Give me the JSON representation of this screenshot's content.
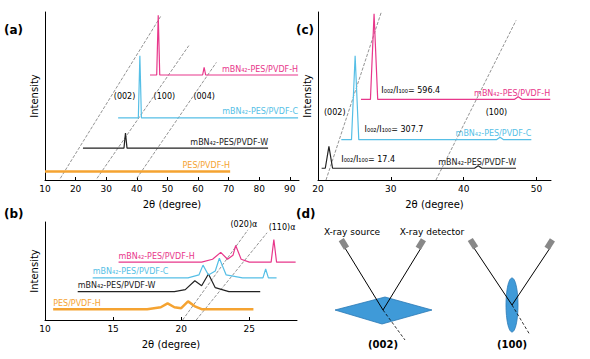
{
  "chart_data": [
    {
      "type": "line",
      "title": "(a)",
      "xlabel": "2θ (degree)",
      "ylabel": "Intensity",
      "xlim": [
        10,
        93
      ],
      "xticks": [
        10,
        20,
        30,
        40,
        50,
        60,
        70,
        80,
        90
      ],
      "ylim": [
        0,
        100
      ],
      "yticks": [],
      "tick_labels": "x",
      "grid": false,
      "series": [
        {
          "name": "PES/PVDF-H",
          "color": "#f5a331",
          "x": [
            10,
            70.5
          ],
          "values": [
            5,
            5
          ]
        },
        {
          "name": "mBN₄₂-PES/PVDF-W",
          "color": "#222222",
          "x": [
            22.4,
            35.8,
            36.3,
            36.8,
            82.9
          ],
          "values": [
            19,
            19,
            28,
            19,
            19
          ]
        },
        {
          "name": "mBN₄₂-PES/PVDF-C",
          "color": "#56bfe6",
          "x": [
            33.9,
            40.5,
            41,
            41.5,
            92.7
          ],
          "values": [
            37,
            37,
            74,
            37,
            37
          ]
        },
        {
          "name": "mBN₄₂-PES/PVDF-H",
          "color": "#e8378b",
          "x": [
            44.3,
            46.5,
            47,
            47.5,
            61.5,
            62,
            62.5,
            92.7
          ],
          "values": [
            62.5,
            62.5,
            98,
            62.5,
            62.5,
            67,
            62.5,
            62.5
          ]
        }
      ],
      "guides": [
        {
          "x": [
            15,
            48
          ],
          "values": [
            1,
            98
          ]
        },
        {
          "x": [
            27,
            57
          ],
          "values": [
            1,
            80
          ]
        },
        {
          "x": [
            40,
            66
          ],
          "values": [
            1,
            70
          ]
        }
      ],
      "annotations": [
        {
          "text": "(002)",
          "x": 36,
          "y": 50
        },
        {
          "text": "(100)",
          "x": 49,
          "y": 50
        },
        {
          "text": "(004)",
          "x": 62,
          "y": 50
        }
      ]
    },
    {
      "type": "line",
      "title": "(b)",
      "xlabel": "2θ (degree)",
      "ylabel": "Intensity",
      "xlim": [
        10,
        28.5
      ],
      "xticks": [
        10,
        15,
        20,
        25
      ],
      "ylim": [
        0,
        100
      ],
      "yticks": [],
      "tick_labels": "x",
      "grid": false,
      "series": [
        {
          "name": "PES/PVDF-H",
          "color": "#f5a331",
          "x": [
            10.6,
            17.5,
            18.5,
            19.0,
            19.5,
            20.0,
            20.5,
            21.0,
            21.5,
            22.0,
            23.0,
            25.3
          ],
          "values": [
            11,
            11,
            13,
            17,
            13,
            12,
            19,
            14,
            11,
            11,
            11,
            11
          ]
        },
        {
          "name": "mBN₄₂-PES/PVDF-W",
          "color": "#222222",
          "x": [
            12.4,
            19.5,
            20.3,
            21.0,
            21.5,
            22.0,
            22.5,
            23.5,
            25.8
          ],
          "values": [
            29,
            29,
            31,
            40,
            35,
            47,
            33,
            29,
            29
          ]
        },
        {
          "name": "mBN₄₂-PES/PVDF-C",
          "color": "#56bfe6",
          "x": [
            13.5,
            20.5,
            21.3,
            21.6,
            22.0,
            22.5,
            22.8,
            23.3,
            24.5,
            26.0,
            26.2,
            26.4,
            27.0
          ],
          "values": [
            43,
            43,
            46,
            56,
            46,
            50,
            63,
            46,
            43,
            43,
            52,
            43,
            43
          ]
        },
        {
          "name": "mBN₄₂-PES/PVDF-H",
          "color": "#e8378b",
          "x": [
            15.4,
            21.5,
            22.3,
            22.9,
            23.4,
            23.8,
            24.0,
            24.4,
            25.0,
            26.6,
            26.8,
            27.0,
            28.4
          ],
          "values": [
            59,
            59,
            62,
            69,
            62,
            66,
            76,
            62,
            59,
            59,
            82,
            59,
            59
          ]
        }
      ],
      "guides": [
        {
          "x": [
            20.1,
            24.9
          ],
          "values": [
            0,
            92
          ]
        },
        {
          "x": [
            21.1,
            26.3
          ],
          "values": [
            0,
            89
          ]
        }
      ],
      "annotations": [
        {
          "text": "(020)α",
          "x": 24.6,
          "y": 97
        },
        {
          "text": "(110)α",
          "x": 27.4,
          "y": 94
        }
      ]
    },
    {
      "type": "line",
      "title": "(c)",
      "xlabel": "2θ (degree)",
      "ylabel": "Intensity",
      "xlim": [
        20,
        52
      ],
      "xticks": [
        20,
        30,
        40,
        50
      ],
      "ylim": [
        0,
        100
      ],
      "yticks": [],
      "tick_labels": "x",
      "grid": false,
      "series": [
        {
          "name": "mBN₄₂-PES/PVDF-W",
          "color": "#222222",
          "x": [
            20.5,
            21.0,
            21.5,
            22.0,
            41.5,
            42.0,
            42.5,
            47.2
          ],
          "values": [
            7,
            7,
            20,
            7,
            7,
            8.5,
            7,
            7
          ]
        },
        {
          "name": "mBN₄₂-PES/PVDF-C",
          "color": "#56bfe6",
          "x": [
            23.2,
            24.6,
            25.1,
            25.6,
            44.5,
            45.0,
            45.5,
            49.3
          ],
          "values": [
            24,
            24,
            74,
            24,
            24,
            25.5,
            24,
            24
          ]
        },
        {
          "name": "mBN₄₂-PES/PVDF-H",
          "color": "#e8378b",
          "x": [
            25.9,
            27.2,
            27.7,
            28.2,
            47.0,
            47.5,
            48.0,
            51.9
          ],
          "values": [
            48,
            48,
            99,
            48,
            48,
            49.5,
            48,
            48
          ]
        }
      ],
      "guides": [
        {
          "x": [
            21.1,
            28.7
          ],
          "values": [
            0,
            100
          ]
        },
        {
          "x": [
            36.2,
            47.2
          ],
          "values": [
            0,
            95
          ]
        }
      ],
      "annotations": [
        {
          "text": "(002)",
          "x": 22.3,
          "y": 40
        },
        {
          "text": "(100)",
          "x": 44.5,
          "y": 40
        },
        {
          "text": "I₀₀₂/I₁₀₀= 17.4",
          "x": 23.2,
          "y": 12
        },
        {
          "text": "I₀₀₂/I₁₀₀= 307.7",
          "x": 26.4,
          "y": 30
        },
        {
          "text": "I₀₀₂/I₁₀₀= 596.4",
          "x": 28.7,
          "y": 53
        }
      ]
    }
  ],
  "diagram": {
    "title": "(d)",
    "source_label": "X-ray source",
    "detector_label": "X-ray detector",
    "orientations": [
      "(002)",
      "(100)"
    ]
  }
}
